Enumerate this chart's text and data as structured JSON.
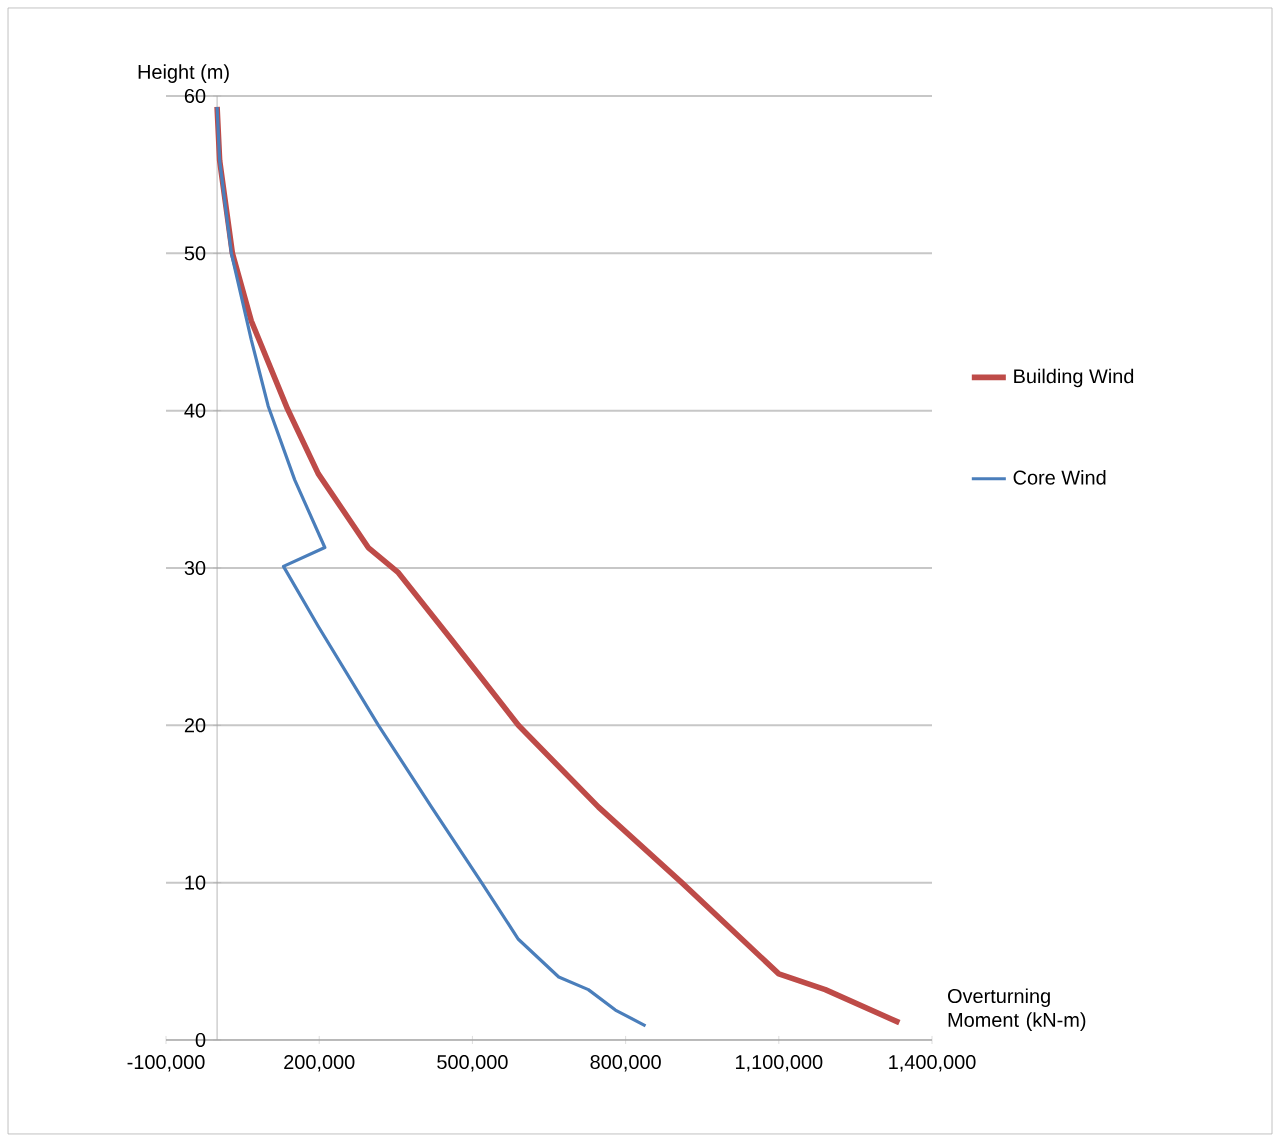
{
  "chart_data": {
    "type": "line",
    "xlabel": "Overturning Moment (kN-m)",
    "ylabel": "Height (m)",
    "xlim": [
      -100000,
      1400000
    ],
    "ylim": [
      0,
      60
    ],
    "xticks": [
      {
        "value": -100000,
        "label": "-100,000"
      },
      {
        "value": 200000,
        "label": "200,000"
      },
      {
        "value": 500000,
        "label": "500,000"
      },
      {
        "value": 800000,
        "label": "800,000"
      },
      {
        "value": 1100000,
        "label": "1,100,000"
      },
      {
        "value": 1400000,
        "label": "1,400,000"
      }
    ],
    "yticks": [
      0,
      10,
      20,
      30,
      40,
      50,
      60
    ],
    "grid": "y",
    "legend": "right",
    "marker": "none",
    "line_style": "solid",
    "series": [
      {
        "name": "Building Wind",
        "color": "#be4b48",
        "x": [
          0,
          5000,
          30000,
          67000,
          138000,
          198000,
          296000,
          355000,
          460000,
          590000,
          747000,
          910000,
          1100000,
          1191000,
          1336000
        ],
        "values": [
          59.3,
          55.9,
          50,
          45.7,
          40.1,
          36,
          31.3,
          29.7,
          25.4,
          20,
          14.8,
          10,
          4.2,
          3.2,
          1.1
        ]
      },
      {
        "name": "Core Wind",
        "color": "#4a7ebb",
        "x": [
          0,
          5000,
          28000,
          67000,
          100000,
          152000,
          211000,
          130000,
          198000,
          316000,
          420000,
          518000,
          590000,
          669000,
          727000,
          780000,
          839000
        ],
        "values": [
          59.3,
          55.9,
          50,
          44.5,
          40.3,
          35.6,
          31.3,
          30.1,
          26.3,
          20,
          14.8,
          10,
          6.4,
          4.0,
          3.2,
          1.9,
          0.9
        ]
      }
    ]
  }
}
